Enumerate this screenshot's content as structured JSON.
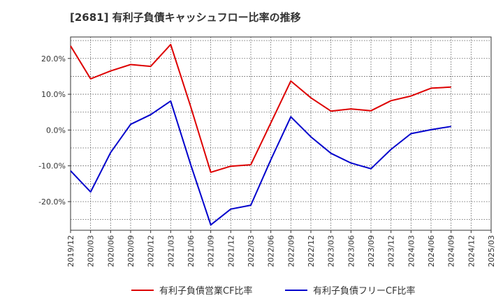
{
  "chart_data": {
    "type": "line",
    "title": "[2681]  有利子負債キャッシュフロー比率の推移",
    "xlabel": "",
    "ylabel": "",
    "categories": [
      "2019/12",
      "2020/03",
      "2020/06",
      "2020/09",
      "2020/12",
      "2021/03",
      "2021/06",
      "2021/09",
      "2021/12",
      "2022/03",
      "2022/06",
      "2022/09",
      "2022/12",
      "2023/03",
      "2023/06",
      "2023/09",
      "2023/12",
      "2024/03",
      "2024/06",
      "2024/09",
      "2024/12",
      "2025/03"
    ],
    "yticks": [
      {
        "value": 20,
        "label": "20.0%"
      },
      {
        "value": 10,
        "label": "10.0%"
      },
      {
        "value": 0,
        "label": "0.0%"
      },
      {
        "value": -10,
        "label": "-10.0%"
      },
      {
        "value": -20,
        "label": "-20.0%"
      }
    ],
    "ylim": [
      -28,
      26
    ],
    "grid": true,
    "legend_position": "bottom",
    "series": [
      {
        "name": "有利子負債営業CF比率",
        "color": "#dd0000",
        "values": [
          23.5,
          14.3,
          16.5,
          18.3,
          17.8,
          23.9,
          6.5,
          -11.8,
          -10.1,
          -9.7,
          2.0,
          13.7,
          9.0,
          5.3,
          5.9,
          5.4,
          8.2,
          9.5,
          11.7,
          12.0,
          null,
          null
        ]
      },
      {
        "name": "有利子負債フリーCF比率",
        "color": "#0000cc",
        "values": [
          -11.4,
          -17.3,
          -6.3,
          1.6,
          4.3,
          8.1,
          -9.7,
          -26.5,
          -22.1,
          -21.0,
          -8.3,
          3.7,
          -1.9,
          -6.5,
          -9.2,
          -10.8,
          -5.4,
          -1.0,
          0.1,
          1.0,
          null,
          null
        ]
      }
    ]
  }
}
